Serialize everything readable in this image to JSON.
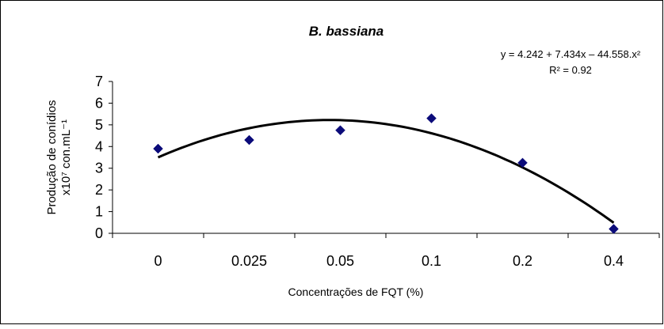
{
  "chart_data": {
    "type": "scatter",
    "title": "B. bassiana",
    "categories": [
      "0",
      "0.025",
      "0.05",
      "0.1",
      "0.2",
      "0.4"
    ],
    "series": [
      {
        "values": [
          3.9,
          4.3,
          4.75,
          5.3,
          3.25,
          0.2
        ],
        "marker": "diamond",
        "color": "#0b0b7a"
      }
    ],
    "trendline": {
      "type": "polynomial",
      "equation": "y = 4.242 + 7.434x – 44.558.x²",
      "r_squared": "R² = 0.92",
      "coefficients": [
        4.242,
        7.434,
        -44.558
      ],
      "color": "#000000"
    },
    "xlabel": "Concentrações de FQT (%)",
    "ylabel_line1": "Produção de conídios",
    "ylabel_line2": "x10⁷ con.mL⁻¹",
    "ylim": [
      0,
      7
    ],
    "yticks": [
      "0",
      "1",
      "2",
      "3",
      "4",
      "5",
      "6",
      "7"
    ],
    "grid": false,
    "legend": "none"
  }
}
